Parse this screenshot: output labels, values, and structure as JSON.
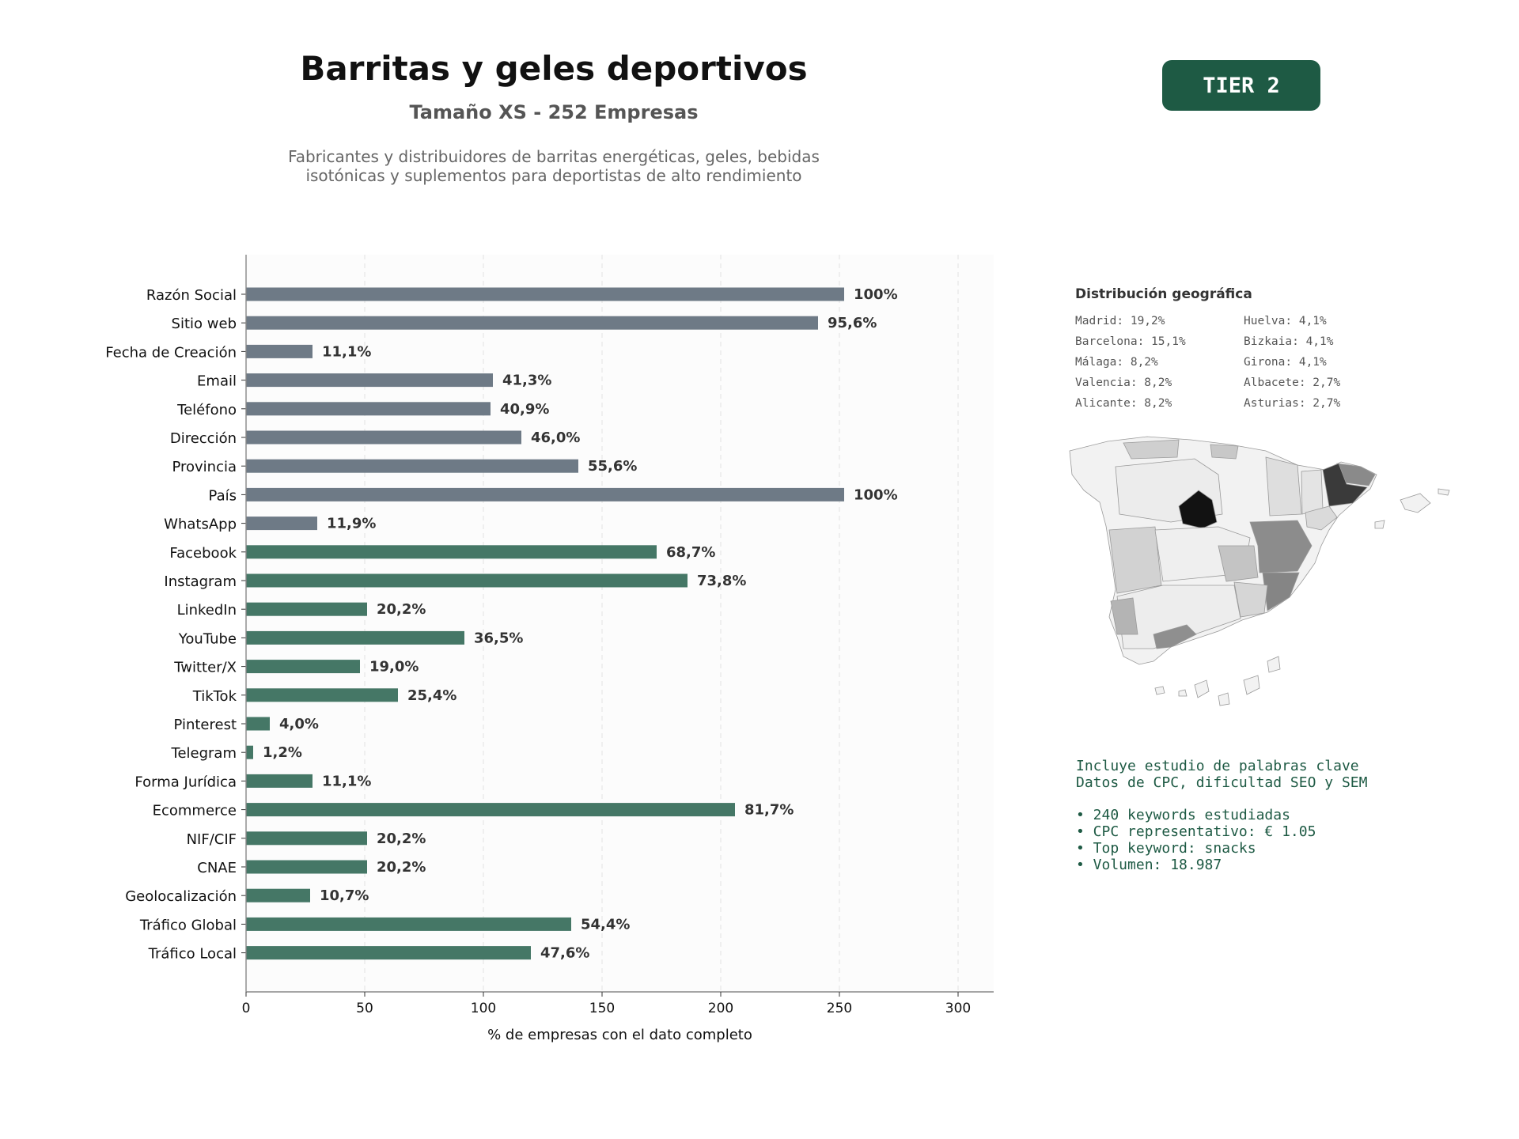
{
  "header": {
    "title": "Barritas y geles deportivos",
    "subtitle": "Tamaño XS - 252 Empresas",
    "description_line1": "Fabricantes y distribuidores de barritas energéticas, geles, bebidas",
    "description_line2": "isotónicas y suplementos para deportistas de alto rendimiento",
    "tier_badge": "TIER 2"
  },
  "chart_data": {
    "type": "bar",
    "orientation": "horizontal",
    "categories": [
      "Razón Social",
      "Sitio web",
      "Fecha de Creación",
      "Email",
      "Teléfono",
      "Dirección",
      "Provincia",
      "País",
      "WhatsApp",
      "Facebook",
      "Instagram",
      "LinkedIn",
      "YouTube",
      "Twitter/X",
      "TikTok",
      "Pinterest",
      "Telegram",
      "Forma Jurídica",
      "Ecommerce",
      "NIF/CIF",
      "CNAE",
      "Geolocalización",
      "Tráfico Global",
      "Tráfico Local"
    ],
    "values": [
      252,
      241,
      28,
      104,
      103,
      116,
      140,
      252,
      30,
      173,
      186,
      51,
      92,
      48,
      64,
      10,
      3,
      28,
      206,
      51,
      51,
      27,
      137,
      120
    ],
    "data_labels": [
      "100%",
      "95,6%",
      "11,1%",
      "41,3%",
      "40,9%",
      "46,0%",
      "55,6%",
      "100%",
      "11,9%",
      "68,7%",
      "73,8%",
      "20,2%",
      "36,5%",
      "19,0%",
      "25,4%",
      "4,0%",
      "1,2%",
      "11,1%",
      "81,7%",
      "20,2%",
      "20,2%",
      "10,7%",
      "54,4%",
      "47,6%"
    ],
    "bar_groups": [
      "contact",
      "contact",
      "contact",
      "contact",
      "contact",
      "contact",
      "contact",
      "contact",
      "contact",
      "digital",
      "digital",
      "digital",
      "digital",
      "digital",
      "digital",
      "digital",
      "digital",
      "digital",
      "digital",
      "digital",
      "digital",
      "digital",
      "digital",
      "digital"
    ],
    "colors": {
      "contact": "#6e7a86",
      "digital": "#457766"
    },
    "xlabel": "% de empresas con el dato completo",
    "xlim": [
      0,
      315
    ],
    "xticks": [
      0,
      50,
      100,
      150,
      200,
      250,
      300
    ],
    "grid": "vertical-dashed"
  },
  "geo": {
    "title": "Distribución geográfica",
    "items": [
      "Madrid: 19,2%",
      "Huelva: 4,1%",
      "Barcelona: 15,1%",
      "Bizkaia: 4,1%",
      "Málaga: 8,2%",
      "Girona: 4,1%",
      "Valencia: 8,2%",
      "Albacete: 2,7%",
      "Alicante: 8,2%",
      "Asturias: 2,7%"
    ]
  },
  "keywords": {
    "line1": "Incluye estudio de palabras clave",
    "line2": "Datos de CPC, dificultad SEO y SEM",
    "bullets": [
      "• 240 keywords estudiadas",
      "• CPC representativo: € 1.05",
      "• Top keyword: snacks",
      "• Volumen: 18.987"
    ]
  }
}
